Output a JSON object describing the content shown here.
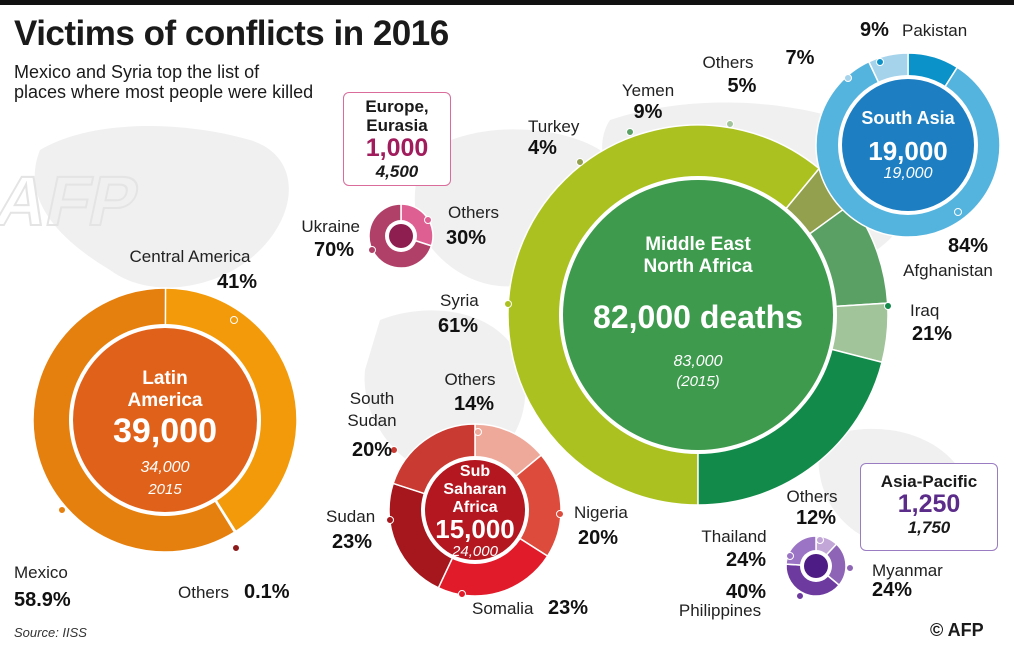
{
  "header": {
    "title": "Victims of conflicts in 2016",
    "subtitle": "Mexico and Syria top the list of places where most people were killed",
    "source": "Source: IISS",
    "credit": "© AFP",
    "watermark": "AFP"
  },
  "chart_data": [
    {
      "type": "pie",
      "region": "Middle East North Africa",
      "region_lines": [
        "Middle East",
        "North Africa"
      ],
      "total_label": "82,000 deaths",
      "previous_label": "83,000",
      "previous_year_label": "(2015)",
      "total": 82000,
      "previous_total": 83000,
      "previous_year": 2015,
      "slices": [
        {
          "name": "Syria",
          "value": 61,
          "label": "61%",
          "color": "#abc11f"
        },
        {
          "name": "Turkey",
          "value": 4,
          "label": "4%",
          "color": "#93a04e"
        },
        {
          "name": "Yemen",
          "value": 9,
          "label": "9%",
          "color": "#5aa064"
        },
        {
          "name": "Others",
          "value": 5,
          "label": "5%",
          "color": "#a1c49a"
        },
        {
          "name": "Iraq",
          "value": 21,
          "label": "21%",
          "color": "#128a4a"
        }
      ],
      "colors": {
        "center": "#3e9a4d"
      }
    },
    {
      "type": "pie",
      "region": "Latin America",
      "region_lines": [
        "Latin",
        "America"
      ],
      "total_label": "39,000",
      "previous_label": "34,000",
      "previous_year_label": "2015",
      "total": 39000,
      "previous_total": 34000,
      "previous_year": 2015,
      "slices": [
        {
          "name": "Central America",
          "value": 41,
          "label": "41%",
          "color": "#f29a0a"
        },
        {
          "name": "Others",
          "value": 0.1,
          "label": "0.1%",
          "color": "#8c1a1a"
        },
        {
          "name": "Mexico",
          "value": 58.9,
          "label": "58.9%",
          "color": "#e5800f"
        }
      ],
      "colors": {
        "center": "#e0621a"
      }
    },
    {
      "type": "pie",
      "region": "Sub Saharan Africa",
      "region_lines": [
        "Sub",
        "Saharan",
        "Africa"
      ],
      "total_label": "15,000",
      "previous_label": "24,000",
      "total": 15000,
      "previous_total": 24000,
      "slices": [
        {
          "name": "Others",
          "value": 14,
          "label": "14%",
          "color": "#eea99b"
        },
        {
          "name": "Nigeria",
          "value": 20,
          "label": "20%",
          "color": "#dc4b3c"
        },
        {
          "name": "Somalia",
          "value": 23,
          "label": "23%",
          "color": "#e21b2a"
        },
        {
          "name": "Sudan",
          "value": 23,
          "label": "23%",
          "color": "#a5171d"
        },
        {
          "name": "South Sudan",
          "value": 20,
          "label": "20%",
          "color": "#c93a32"
        }
      ],
      "colors": {
        "center": "#b4171f"
      }
    },
    {
      "type": "pie",
      "region": "South Asia",
      "region_lines": [
        "South Asia"
      ],
      "total_label": "19,000",
      "previous_label": "19,000",
      "total": 19000,
      "previous_total": 19000,
      "slices": [
        {
          "name": "Pakistan",
          "value": 9,
          "label": "9%",
          "color": "#0b93c9"
        },
        {
          "name": "Afghanistan",
          "value": 84,
          "label": "84%",
          "color": "#55b4de"
        },
        {
          "name": "Others",
          "value": 7,
          "label": "7%",
          "color": "#a6d3ec"
        }
      ],
      "colors": {
        "center": "#1d7fc2"
      }
    },
    {
      "type": "pie",
      "region": "Europe, Eurasia",
      "region_lines": [
        "Europe,",
        "Eurasia"
      ],
      "total_label": "1,000",
      "previous_label": "4,500",
      "total": 1000,
      "previous_total": 4500,
      "slices": [
        {
          "name": "Others",
          "value": 30,
          "label": "30%",
          "color": "#de5f92"
        },
        {
          "name": "Ukraine",
          "value": 70,
          "label": "70%",
          "color": "#b04068"
        }
      ],
      "colors": {
        "center": "#8e1e4f",
        "accent": "#a01c5c"
      }
    },
    {
      "type": "pie",
      "region": "Asia-Pacific",
      "region_lines": [
        "Asia-Pacific"
      ],
      "total_label": "1,250",
      "previous_label": "1,750",
      "total": 1250,
      "previous_total": 1750,
      "slices": [
        {
          "name": "Others",
          "value": 12,
          "label": "12%",
          "color": "#c3a6d8"
        },
        {
          "name": "Myanmar",
          "value": 24,
          "label": "24%",
          "color": "#8e64b7"
        },
        {
          "name": "Philippines",
          "value": 40,
          "label": "40%",
          "color": "#6d3aa0"
        },
        {
          "name": "Thailand",
          "value": 24,
          "label": "24%",
          "color": "#9b74c5"
        }
      ],
      "colors": {
        "center": "#4e1c85",
        "accent": "#5b2c8a"
      }
    }
  ]
}
